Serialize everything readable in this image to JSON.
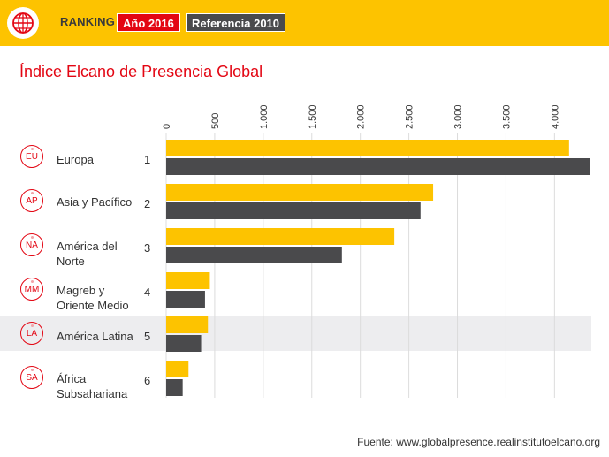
{
  "header": {
    "ranking_label": "RANKING",
    "tags": [
      {
        "label": "Año 2016",
        "color": "#e30613"
      },
      {
        "label": "Referencia 2010",
        "color": "#4a4a4c"
      }
    ],
    "logo_icon": "globe-icon",
    "background": "#fdc300"
  },
  "source": "Fuente: www.globalpresence.realinstitutoelcano.org",
  "colors": {
    "series_2016": "#fdc300",
    "series_2010": "#4a4a4c",
    "accent": "#e30613",
    "highlight_row": "#ededef"
  },
  "chart_data": {
    "type": "bar",
    "orientation": "horizontal",
    "title": "Índice Elcano de Presencia Global",
    "categories": [
      "Europa",
      "Asia y Pacífico",
      "América del Norte",
      "Magreb y Oriente Medio",
      "América Latina",
      "África Subsahariana"
    ],
    "codes": [
      "EU",
      "AP",
      "NA",
      "MM",
      "LA",
      "SA"
    ],
    "ranks": [
      "1",
      "2",
      "3",
      "4",
      "5",
      "6"
    ],
    "series": [
      {
        "name": "Año 2016",
        "values": [
          4150,
          2750,
          2350,
          450,
          430,
          230
        ]
      },
      {
        "name": "Referencia 2010",
        "values": [
          4370,
          2620,
          1810,
          400,
          360,
          170
        ]
      }
    ],
    "xlim": [
      0,
      4370
    ],
    "xticks": [
      "0",
      "500",
      "1.000",
      "1.500",
      "2.000",
      "2.500",
      "3.000",
      "3.500",
      "4.000"
    ],
    "xtick_values": [
      0,
      500,
      1000,
      1500,
      2000,
      2500,
      3000,
      3500,
      4000
    ],
    "highlighted_category": "América Latina",
    "grid": true,
    "legend": "top"
  }
}
